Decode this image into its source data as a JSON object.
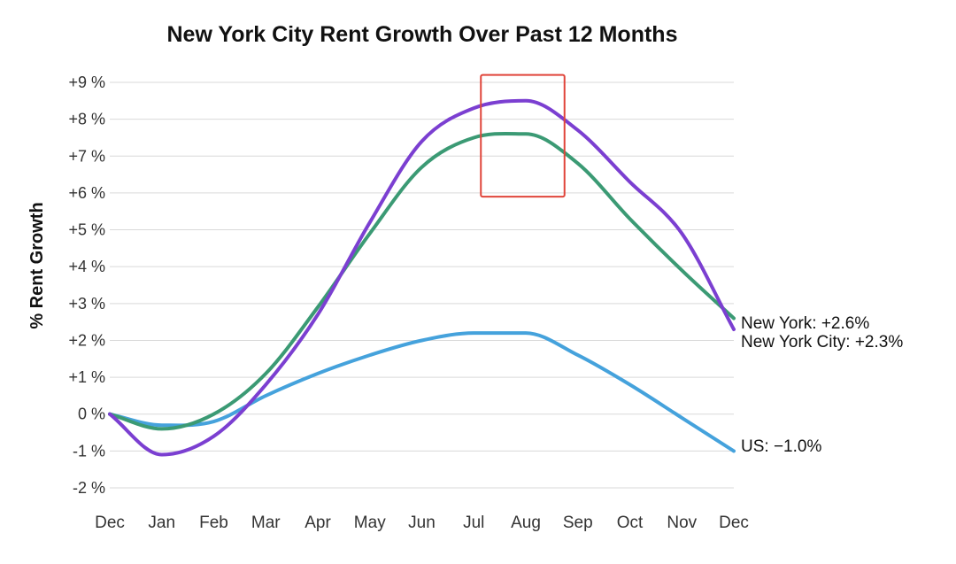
{
  "chart_data": {
    "type": "line",
    "title": "New York City Rent Growth Over Past 12 Months",
    "xlabel": "",
    "ylabel": "% Rent Growth",
    "categories": [
      "Dec",
      "Jan",
      "Feb",
      "Mar",
      "Apr",
      "May",
      "Jun",
      "Jul",
      "Aug",
      "Sep",
      "Oct",
      "Nov",
      "Dec"
    ],
    "ylim": [
      -2,
      9
    ],
    "yticks": [
      "+9 %",
      "+8 %",
      "+7 %",
      "+6 %",
      "+5 %",
      "+4 %",
      "+3 %",
      "+2 %",
      "+1 %",
      "0 %",
      "-1 %",
      "-2 %"
    ],
    "ytick_values": [
      9,
      8,
      7,
      6,
      5,
      4,
      3,
      2,
      1,
      0,
      -1,
      -2
    ],
    "grid": true,
    "series": [
      {
        "key": "nycity",
        "end_label": "New York City: +2.3%",
        "color": "#7b3fd1",
        "values": [
          0.0,
          -1.1,
          -0.6,
          0.8,
          2.7,
          5.2,
          7.4,
          8.3,
          8.5,
          7.7,
          6.3,
          4.9,
          2.3
        ]
      },
      {
        "key": "newyork",
        "end_label": "New York: +2.6%",
        "color": "#3b9a74",
        "values": [
          0.0,
          -0.4,
          0.0,
          1.1,
          2.9,
          4.9,
          6.7,
          7.5,
          7.6,
          6.8,
          5.3,
          3.9,
          2.6
        ]
      },
      {
        "key": "us",
        "end_label": "US: −1.0%",
        "color": "#45a2dc",
        "values": [
          0.0,
          -0.3,
          -0.2,
          0.5,
          1.1,
          1.6,
          2.0,
          2.2,
          2.2,
          1.6,
          0.8,
          -0.1,
          -1.0
        ]
      }
    ],
    "annotations": [
      {
        "type": "highlight-box",
        "color": "#e0453a",
        "x_from": "Jul",
        "x_to": "Sep",
        "y_from": 5.9,
        "y_to": 9.2
      }
    ]
  }
}
